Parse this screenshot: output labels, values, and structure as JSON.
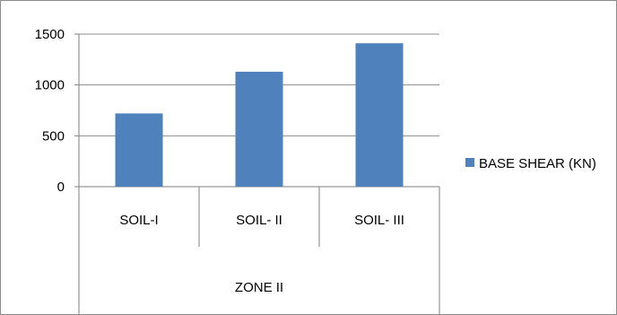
{
  "chart_data": {
    "type": "bar",
    "categories": [
      "SOIL-I",
      "SOIL- II",
      "SOIL- III"
    ],
    "group_label": "ZONE II",
    "series": [
      {
        "name": "BASE SHEAR (KN)",
        "values": [
          720,
          1130,
          1410
        ],
        "color": "#4f81bd"
      }
    ],
    "ylim": [
      0,
      1500
    ],
    "yticks": [
      0,
      500,
      1000,
      1500
    ],
    "grid": true,
    "legend_position": "right"
  }
}
